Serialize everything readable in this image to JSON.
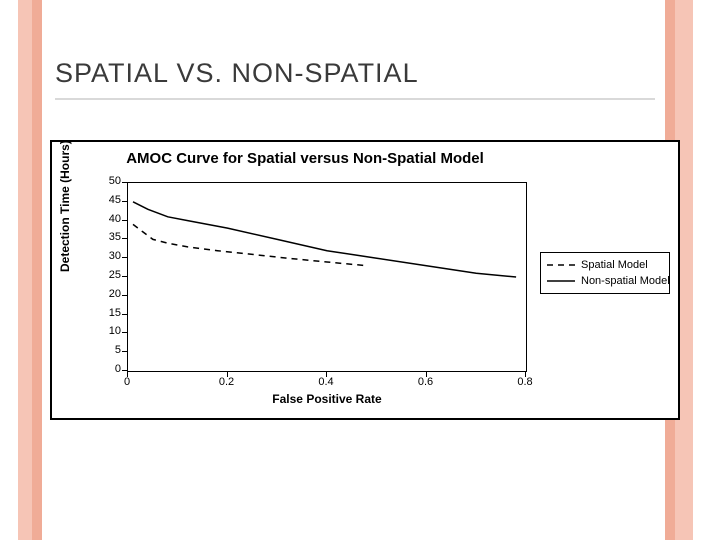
{
  "slide": {
    "title": "SPATIAL VS. NON-SPATIAL",
    "title_color": "#3a3a3a",
    "title_fontsize": 27,
    "stripe_color_light": "#f6c5b6",
    "stripe_color_dark": "#f0ac97",
    "background": "#ffffff"
  },
  "chart": {
    "type": "line",
    "title": "AMOC Curve for Spatial versus Non-Spatial Model",
    "title_fontsize": 15,
    "title_fontweight": "bold",
    "xlabel": "False Positive Rate",
    "ylabel": "Detection Time (Hours)",
    "label_fontsize": 12,
    "label_fontweight": "bold",
    "xlim": [
      0,
      0.8
    ],
    "ylim": [
      0,
      50
    ],
    "xticks": [
      0,
      0.2,
      0.4,
      0.6,
      0.8
    ],
    "yticks": [
      0,
      5,
      10,
      15,
      20,
      25,
      30,
      35,
      40,
      45,
      50
    ],
    "tick_fontsize": 11,
    "plot_border_color": "#000000",
    "outer_border_color": "#000000",
    "background_color": "#ffffff",
    "series": [
      {
        "name": "Spatial Model",
        "color": "#000000",
        "line_width": 1.5,
        "dash": "6,5",
        "x": [
          0.01,
          0.03,
          0.05,
          0.08,
          0.12,
          0.18,
          0.25,
          0.32,
          0.4,
          0.48
        ],
        "y": [
          39,
          37,
          35,
          34,
          33,
          32,
          31,
          30,
          29,
          28
        ]
      },
      {
        "name": "Non-spatial Model",
        "color": "#000000",
        "line_width": 1.5,
        "dash": "none",
        "x": [
          0.01,
          0.04,
          0.08,
          0.12,
          0.2,
          0.3,
          0.4,
          0.5,
          0.6,
          0.7,
          0.78
        ],
        "y": [
          45,
          43,
          41,
          40,
          38,
          35,
          32,
          30,
          28,
          26,
          25
        ]
      }
    ],
    "legend": {
      "position": "right",
      "border_color": "#000000",
      "background": "#ffffff",
      "fontsize": 11,
      "items": [
        {
          "label": "Spatial Model",
          "dash": "6,5",
          "color": "#000000"
        },
        {
          "label": "Non-spatial Model",
          "dash": "none",
          "color": "#000000"
        }
      ]
    }
  }
}
